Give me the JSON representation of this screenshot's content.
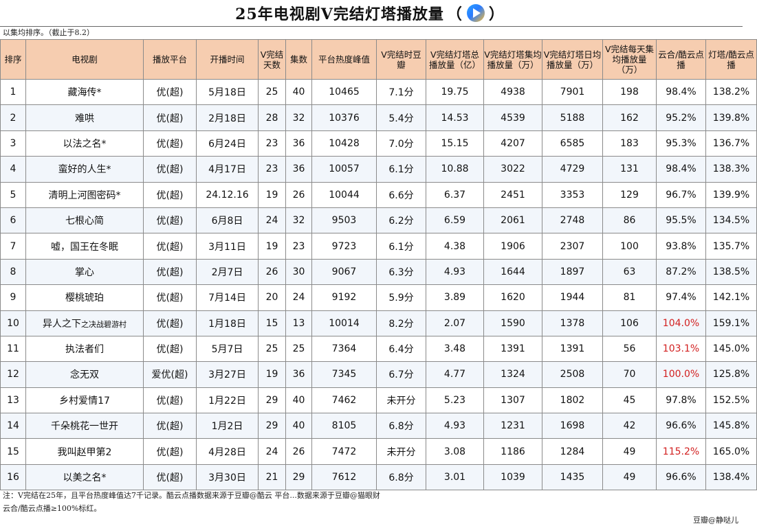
{
  "title": {
    "main": "25年电视剧V完结灯塔播放量",
    "paren_open": "（",
    "paren_close": "）",
    "logo_icon": "tencent-video-logo"
  },
  "subnote": "以集均排序。（截止于8.2）",
  "columns": [
    "排序",
    "电视剧",
    "播放平台",
    "开播时间",
    "V完结天数",
    "集数",
    "平台热度峰值",
    "V完结时豆瓣",
    "V完结灯塔总播放量（亿）",
    "V完结灯塔集均播放量（万）",
    "V完结灯塔日均播放量（万）",
    "V完结每天集均播放量（万）",
    "云合/酷云点播",
    "灯塔/酷云点播"
  ],
  "rows": [
    {
      "rank": "1",
      "title": "藏海传*",
      "title_suffix": "",
      "platform": "优(超)",
      "start": "5月18日",
      "days": "25",
      "episodes": "40",
      "heat": "10465",
      "douban": "7.1分",
      "total": "19.75",
      "per_ep": "4938",
      "daily": "7901",
      "daily_ep": "198",
      "yunhe": "98.4%",
      "yunhe_hi": false,
      "dengta": "138.2%"
    },
    {
      "rank": "2",
      "title": "难哄",
      "title_suffix": "",
      "platform": "优(超)",
      "start": "2月18日",
      "days": "28",
      "episodes": "32",
      "heat": "10376",
      "douban": "5.4分",
      "total": "14.53",
      "per_ep": "4539",
      "daily": "5188",
      "daily_ep": "162",
      "yunhe": "95.2%",
      "yunhe_hi": false,
      "dengta": "139.8%"
    },
    {
      "rank": "3",
      "title": "以法之名*",
      "title_suffix": "",
      "platform": "优(超)",
      "start": "6月24日",
      "days": "23",
      "episodes": "36",
      "heat": "10428",
      "douban": "7.0分",
      "total": "15.15",
      "per_ep": "4207",
      "daily": "6585",
      "daily_ep": "183",
      "yunhe": "95.3%",
      "yunhe_hi": false,
      "dengta": "136.7%"
    },
    {
      "rank": "4",
      "title": "蛮好的人生*",
      "title_suffix": "",
      "platform": "优(超)",
      "start": "4月17日",
      "days": "23",
      "episodes": "36",
      "heat": "10057",
      "douban": "6.1分",
      "total": "10.88",
      "per_ep": "3022",
      "daily": "4729",
      "daily_ep": "131",
      "yunhe": "98.4%",
      "yunhe_hi": false,
      "dengta": "138.3%"
    },
    {
      "rank": "5",
      "title": "清明上河图密码*",
      "title_suffix": "",
      "platform": "优(超)",
      "start": "24.12.16",
      "days": "19",
      "episodes": "26",
      "heat": "10044",
      "douban": "6.6分",
      "total": "6.37",
      "per_ep": "2451",
      "daily": "3353",
      "daily_ep": "129",
      "yunhe": "96.7%",
      "yunhe_hi": false,
      "dengta": "139.9%"
    },
    {
      "rank": "6",
      "title": "七根心简",
      "title_suffix": "",
      "platform": "优(超)",
      "start": "6月8日",
      "days": "24",
      "episodes": "32",
      "heat": "9503",
      "douban": "6.2分",
      "total": "6.59",
      "per_ep": "2061",
      "daily": "2748",
      "daily_ep": "86",
      "yunhe": "95.5%",
      "yunhe_hi": false,
      "dengta": "134.5%"
    },
    {
      "rank": "7",
      "title": "嘘，国王在冬眠",
      "title_suffix": "",
      "platform": "优(超)",
      "start": "3月11日",
      "days": "19",
      "episodes": "23",
      "heat": "9723",
      "douban": "6.1分",
      "total": "4.38",
      "per_ep": "1906",
      "daily": "2307",
      "daily_ep": "100",
      "yunhe": "93.8%",
      "yunhe_hi": false,
      "dengta": "135.7%"
    },
    {
      "rank": "8",
      "title": "掌心",
      "title_suffix": "",
      "platform": "优(超)",
      "start": "2月7日",
      "days": "26",
      "episodes": "30",
      "heat": "9067",
      "douban": "6.3分",
      "total": "4.93",
      "per_ep": "1644",
      "daily": "1897",
      "daily_ep": "63",
      "yunhe": "87.2%",
      "yunhe_hi": false,
      "dengta": "138.5%"
    },
    {
      "rank": "9",
      "title": "樱桃琥珀",
      "title_suffix": "",
      "platform": "优(超)",
      "start": "7月14日",
      "days": "20",
      "episodes": "24",
      "heat": "9192",
      "douban": "5.9分",
      "total": "3.89",
      "per_ep": "1620",
      "daily": "1944",
      "daily_ep": "81",
      "yunhe": "97.4%",
      "yunhe_hi": false,
      "dengta": "142.1%"
    },
    {
      "rank": "10",
      "title": "异人之下",
      "title_suffix": "之决战碧游村",
      "platform": "优(超)",
      "start": "1月18日",
      "days": "15",
      "episodes": "13",
      "heat": "10014",
      "douban": "8.2分",
      "total": "2.07",
      "per_ep": "1590",
      "daily": "1378",
      "daily_ep": "106",
      "yunhe": "104.0%",
      "yunhe_hi": true,
      "dengta": "159.1%"
    },
    {
      "rank": "11",
      "title": "执法者们",
      "title_suffix": "",
      "platform": "优(超)",
      "start": "5月7日",
      "days": "25",
      "episodes": "25",
      "heat": "7364",
      "douban": "6.4分",
      "total": "3.48",
      "per_ep": "1391",
      "daily": "1391",
      "daily_ep": "56",
      "yunhe": "103.1%",
      "yunhe_hi": true,
      "dengta": "145.0%"
    },
    {
      "rank": "12",
      "title": "念无双",
      "title_suffix": "",
      "platform": "爱优(超)",
      "start": "3月27日",
      "days": "19",
      "episodes": "36",
      "heat": "7345",
      "douban": "6.7分",
      "total": "4.77",
      "per_ep": "1324",
      "daily": "2508",
      "daily_ep": "70",
      "yunhe": "100.0%",
      "yunhe_hi": true,
      "dengta": "125.8%"
    },
    {
      "rank": "13",
      "title": "乡村爱情17",
      "title_suffix": "",
      "platform": "优(超)",
      "start": "1月22日",
      "days": "29",
      "episodes": "40",
      "heat": "7462",
      "douban": "未开分",
      "total": "5.23",
      "per_ep": "1307",
      "daily": "1802",
      "daily_ep": "45",
      "yunhe": "97.8%",
      "yunhe_hi": false,
      "dengta": "152.5%"
    },
    {
      "rank": "14",
      "title": "千朵桃花一世开",
      "title_suffix": "",
      "platform": "优(超)",
      "start": "1月2日",
      "days": "29",
      "episodes": "40",
      "heat": "8105",
      "douban": "6.8分",
      "total": "4.93",
      "per_ep": "1231",
      "daily": "1698",
      "daily_ep": "42",
      "yunhe": "96.6%",
      "yunhe_hi": false,
      "dengta": "145.8%"
    },
    {
      "rank": "15",
      "title": "我叫赵甲第2",
      "title_suffix": "",
      "platform": "优(超)",
      "start": "4月28日",
      "days": "24",
      "episodes": "26",
      "heat": "7472",
      "douban": "未开分",
      "total": "3.08",
      "per_ep": "1186",
      "daily": "1284",
      "daily_ep": "49",
      "yunhe": "115.2%",
      "yunhe_hi": true,
      "dengta": "165.0%"
    },
    {
      "rank": "16",
      "title": "以美之名*",
      "title_suffix": "",
      "platform": "优(超)",
      "start": "3月30日",
      "days": "21",
      "episodes": "29",
      "heat": "7612",
      "douban": "6.8分",
      "total": "3.01",
      "per_ep": "1039",
      "daily": "1435",
      "daily_ep": "49",
      "yunhe": "96.6%",
      "yunhe_hi": false,
      "dengta": "138.4%"
    }
  ],
  "footer": {
    "line1": "注：V完结在25年，且平台热度峰值达7千记录。酷云点播数据来源于豆瓣@酷云 平台...数据来源于豆瓣@猫眼财",
    "line2": "云合/酷云点播≥100%标红。",
    "signature": "豆瓣@静哒儿"
  },
  "colors": {
    "header_bg": "#f6cdb0",
    "highlight_red": "#d21f1f",
    "row_alt": "#f2f6fb"
  }
}
